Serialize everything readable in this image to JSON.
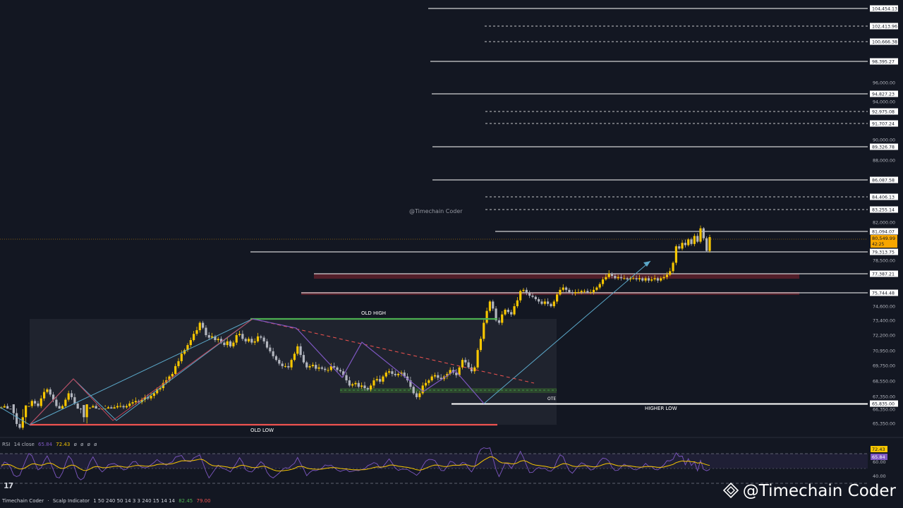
{
  "chart_data": {
    "type": "candlestick",
    "handle_top": "@Timechain Coder",
    "annotations": {
      "old_high": "OLD HIGH",
      "old_low": "OLD LOW",
      "ote": "OTE",
      "higher_low": "HIGHER LOW"
    },
    "price_axis": {
      "ticks": [
        "96,000.00",
        "94,000.00",
        "90,000.00",
        "88,000.00",
        "82,000.00",
        "78,500.00",
        "74,600.00",
        "73,400.00",
        "72,200.00",
        "70,950.00",
        "69,750.00",
        "68,550.00",
        "67,350.00",
        "66,350.00",
        "65,350.00"
      ],
      "range": [
        64800,
        105000
      ]
    },
    "levels": [
      {
        "price": 104454.13,
        "label": "104,454.13",
        "style": "solid"
      },
      {
        "price": 102413.96,
        "label": "102,413.96",
        "style": "dashed"
      },
      {
        "price": 100666.38,
        "label": "100,666.38",
        "style": "dashed"
      },
      {
        "price": 98395.27,
        "label": "98,395.27",
        "style": "solid"
      },
      {
        "price": 94827.23,
        "label": "94,827.23",
        "style": "solid"
      },
      {
        "price": 92975.08,
        "label": "92,975.08",
        "style": "dashed"
      },
      {
        "price": 91707.24,
        "label": "91,707.24",
        "style": "dashed"
      },
      {
        "price": 89326.78,
        "label": "89,326.78",
        "style": "solid"
      },
      {
        "price": 86087.58,
        "label": "86,087.58",
        "style": "solid"
      },
      {
        "price": 84406.13,
        "label": "84,406.13",
        "style": "dashed"
      },
      {
        "price": 83255.14,
        "label": "83,255.14",
        "style": "dashed"
      },
      {
        "price": 81094.07,
        "label": "81,094.07",
        "style": "solid"
      },
      {
        "price": 79313.75,
        "label": "79,313.75",
        "style": "solid"
      },
      {
        "price": 77387.21,
        "label": "77,387.21",
        "style": "solid"
      },
      {
        "price": 75744.48,
        "label": "75,744.48",
        "style": "solid"
      },
      {
        "price": 65835.0,
        "label": "65,835.00",
        "style": "solid"
      }
    ],
    "current_price": {
      "label": "80,549.99",
      "countdown": "42:25",
      "color": "#f7a600"
    },
    "close_series": [
      66.2,
      66.6,
      66.3,
      65.9,
      65.6,
      65.3,
      65.0,
      65.5,
      66.0,
      66.6,
      67.0,
      66.8,
      66.6,
      67.2,
      67.7,
      67.9,
      67.5,
      67.1,
      66.6,
      66.3,
      66.6,
      67.1,
      67.6,
      67.3,
      66.8,
      66.3,
      65.8,
      65.5,
      65.9,
      66.2,
      66.6,
      66.4,
      66.2,
      66.3,
      66.4,
      66.5,
      66.4,
      66.5,
      66.6,
      66.6,
      66.5,
      66.6,
      66.8,
      66.9,
      67.0,
      66.9,
      67.1,
      67.3,
      67.2,
      67.4,
      67.6,
      67.9,
      68.0,
      68.4,
      68.6,
      68.9,
      69.1,
      69.7,
      70.1,
      70.7,
      71.0,
      71.4,
      71.8,
      72.3,
      72.6,
      73.2,
      72.8,
      72.2,
      72.0,
      72.1,
      71.8,
      71.9,
      71.6,
      71.4,
      71.7,
      71.3,
      71.6,
      72.2,
      72.3,
      71.9,
      71.7,
      71.9,
      71.6,
      71.7,
      72.1,
      72.0,
      71.7,
      71.2,
      70.9,
      70.5,
      70.2,
      69.9,
      69.7,
      69.7,
      69.6,
      70.2,
      70.7,
      71.3,
      70.6,
      70.0,
      69.6,
      69.7,
      69.8,
      69.5,
      69.6,
      69.5,
      69.4,
      69.4,
      69.7,
      69.6,
      69.4,
      69.3,
      69.0,
      68.6,
      68.2,
      68.3,
      68.4,
      68.1,
      68.2,
      68.0,
      67.9,
      68.2,
      68.6,
      68.7,
      68.5,
      68.9,
      69.2,
      69.3,
      69.1,
      69.0,
      69.1,
      69.2,
      68.9,
      68.6,
      68.1,
      67.6,
      67.3,
      67.6,
      68.2,
      68.4,
      68.6,
      68.9,
      69.0,
      68.8,
      68.7,
      68.9,
      69.1,
      69.4,
      69.2,
      69.0,
      69.6,
      70.2,
      70.0,
      69.6,
      69.3,
      69.6,
      71.0,
      71.9,
      73.2,
      74.2,
      75.0,
      74.4,
      73.4,
      73.2,
      73.9,
      74.3,
      74.1,
      73.9,
      74.6,
      75.1,
      75.9,
      76.0,
      75.7,
      75.5,
      75.4,
      75.2,
      75.0,
      74.8,
      75.0,
      74.8,
      74.6,
      75.0,
      75.6,
      76.0,
      76.2,
      76.0,
      75.8,
      75.7,
      75.8,
      75.8,
      75.9,
      75.9,
      75.8,
      75.8,
      76.0,
      76.2,
      76.5,
      76.9,
      77.1,
      77.4,
      77.2,
      77.0,
      77.1,
      77.0,
      77.0,
      76.9,
      77.0,
      77.0,
      76.9,
      77.0,
      76.8,
      77.0,
      76.8,
      76.9,
      77.0,
      76.8,
      77.0,
      77.1,
      77.3,
      77.6,
      78.3,
      79.8,
      79.6,
      80.1,
      79.9,
      80.4,
      80.0,
      80.7,
      80.2,
      81.4,
      80.5,
      79.4,
      80.6
    ]
  },
  "rsi": {
    "title": "RSI",
    "params": "14 close",
    "value_1": "65.84",
    "value_2": "72.43",
    "empties": [
      "ø",
      "ø",
      "ø",
      "ø"
    ],
    "axis_ticks": [
      "60.00",
      "40.00"
    ],
    "level_upper": 70,
    "level_mid": 50,
    "level_lower": 30,
    "value_1_color": "#7e57c2",
    "value_2_color": "#f7c600"
  },
  "footer": {
    "author": "Timechain Coder",
    "sep": "·",
    "indicator": "Scalp Indicator",
    "params": "1 50 240 50 14 3 3 240 15 14 14",
    "val_green": "82.45",
    "val_red": "79.00"
  },
  "watermark": "@Timechain Coder",
  "logo_text": "17",
  "colors": {
    "background": "#131722",
    "bull": "#f7c600",
    "bear": "#b2b5be",
    "old_high": "#4caf50",
    "old_low": "#ef5350",
    "trend_line": "#5ba8c9",
    "rsi_line": "#7e57c2",
    "rsi_ma": "#f7c600"
  }
}
